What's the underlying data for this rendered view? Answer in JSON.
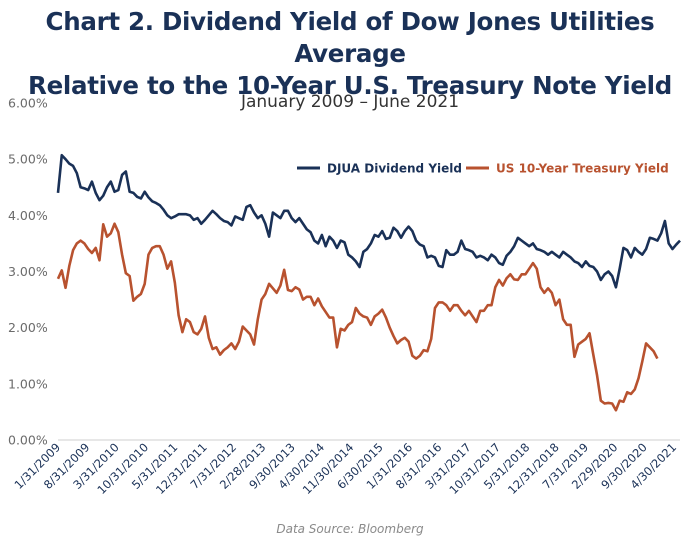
{
  "chart_data": {
    "type": "line",
    "title": "Chart 2. Dividend Yield of Dow Jones Utilities Average Relative to the 10-Year U.S. Treasury Note Yield",
    "title_lines": [
      "Chart 2. Dividend Yield of Dow Jones Utilities Average",
      "Relative to the 10-Year U.S. Treasury Note Yield"
    ],
    "subtitle": "January 2009 – June 2021",
    "source": "Data Source: Bloomberg",
    "ylim": [
      0,
      6
    ],
    "y_ticks": [
      "0.00%",
      "1.00%",
      "2.00%",
      "3.00%",
      "4.00%",
      "5.00%",
      "6.00%"
    ],
    "x_tick_labels": [
      "1/31/2009",
      "8/31/2009",
      "3/31/2010",
      "10/31/2010",
      "5/31/2011",
      "12/31/2011",
      "7/31/2012",
      "2/28/2013",
      "9/30/2013",
      "4/30/2014",
      "11/30/2014",
      "6/30/2015",
      "1/31/2016",
      "8/31/2016",
      "3/31/2017",
      "10/31/2017",
      "5/31/2018",
      "12/31/2018",
      "7/31/2019",
      "2/29/2020",
      "9/30/2020",
      "4/30/2021"
    ],
    "x_start": "2009-01",
    "x_end": "2021-06",
    "grid": false,
    "legend_position": "top-right",
    "colors": {
      "djua": "#1a3157",
      "treasury": "#b8522f"
    },
    "series": [
      {
        "name": "DJUA Dividend Yield",
        "values": [
          4.4,
          5.07,
          5.0,
          4.92,
          4.88,
          4.75,
          4.5,
          4.48,
          4.45,
          4.6,
          4.4,
          4.27,
          4.35,
          4.5,
          4.6,
          4.42,
          4.45,
          4.72,
          4.78,
          4.42,
          4.4,
          4.33,
          4.3,
          4.42,
          4.32,
          4.25,
          4.22,
          4.18,
          4.1,
          4.0,
          3.95,
          3.98,
          4.02,
          4.02,
          4.02,
          4.0,
          3.92,
          3.95,
          3.85,
          3.92,
          4.0,
          4.08,
          4.02,
          3.95,
          3.9,
          3.88,
          3.82,
          3.98,
          3.95,
          3.92,
          4.15,
          4.18,
          4.05,
          3.95,
          4.0,
          3.85,
          3.62,
          4.05,
          4.0,
          3.95,
          4.08,
          4.08,
          3.95,
          3.88,
          3.95,
          3.85,
          3.75,
          3.7,
          3.55,
          3.5,
          3.65,
          3.45,
          3.62,
          3.55,
          3.42,
          3.55,
          3.52,
          3.3,
          3.25,
          3.18,
          3.08,
          3.35,
          3.4,
          3.5,
          3.65,
          3.62,
          3.72,
          3.58,
          3.6,
          3.78,
          3.72,
          3.6,
          3.72,
          3.8,
          3.72,
          3.55,
          3.48,
          3.45,
          3.25,
          3.28,
          3.25,
          3.1,
          3.08,
          3.38,
          3.3,
          3.3,
          3.35,
          3.55,
          3.4,
          3.38,
          3.35,
          3.25,
          3.28,
          3.25,
          3.2,
          3.3,
          3.25,
          3.15,
          3.12,
          3.28,
          3.35,
          3.45,
          3.6,
          3.55,
          3.5,
          3.45,
          3.5,
          3.4,
          3.38,
          3.35,
          3.3,
          3.35,
          3.3,
          3.25,
          3.35,
          3.3,
          3.25,
          3.18,
          3.15,
          3.08,
          3.18,
          3.1,
          3.08,
          3.0,
          2.85,
          2.95,
          3.0,
          2.92,
          2.72,
          3.05,
          3.42,
          3.38,
          3.25,
          3.42,
          3.35,
          3.3,
          3.4,
          3.6,
          3.58,
          3.55,
          3.68,
          3.9,
          3.5,
          3.4,
          3.48,
          3.55
        ]
      },
      {
        "name": "US 10-Year Treasury Yield",
        "values": [
          2.87,
          3.02,
          2.71,
          3.1,
          3.38,
          3.5,
          3.55,
          3.5,
          3.4,
          3.33,
          3.42,
          3.2,
          3.84,
          3.62,
          3.68,
          3.85,
          3.7,
          3.3,
          2.97,
          2.92,
          2.48,
          2.55,
          2.6,
          2.78,
          3.3,
          3.42,
          3.45,
          3.45,
          3.3,
          3.05,
          3.18,
          2.8,
          2.22,
          1.92,
          2.15,
          2.1,
          1.92,
          1.88,
          1.98,
          2.2,
          1.82,
          1.62,
          1.65,
          1.52,
          1.6,
          1.65,
          1.72,
          1.62,
          1.75,
          2.02,
          1.95,
          1.88,
          1.7,
          2.15,
          2.5,
          2.6,
          2.78,
          2.7,
          2.62,
          2.75,
          3.03,
          2.67,
          2.65,
          2.72,
          2.68,
          2.5,
          2.55,
          2.55,
          2.4,
          2.52,
          2.38,
          2.28,
          2.18,
          2.18,
          1.65,
          1.98,
          1.95,
          2.05,
          2.1,
          2.35,
          2.25,
          2.2,
          2.18,
          2.05,
          2.2,
          2.25,
          2.32,
          2.18,
          2.0,
          1.85,
          1.72,
          1.78,
          1.82,
          1.75,
          1.5,
          1.45,
          1.5,
          1.6,
          1.58,
          1.8,
          2.35,
          2.45,
          2.45,
          2.4,
          2.3,
          2.4,
          2.4,
          2.3,
          2.22,
          2.3,
          2.2,
          2.1,
          2.3,
          2.3,
          2.4,
          2.4,
          2.72,
          2.85,
          2.75,
          2.88,
          2.95,
          2.86,
          2.85,
          2.95,
          2.95,
          3.05,
          3.15,
          3.05,
          2.72,
          2.62,
          2.7,
          2.62,
          2.4,
          2.5,
          2.15,
          2.05,
          2.05,
          1.48,
          1.7,
          1.75,
          1.8,
          1.9,
          1.52,
          1.15,
          0.7,
          0.65,
          0.66,
          0.65,
          0.53,
          0.7,
          0.68,
          0.85,
          0.82,
          0.9,
          1.1,
          1.4,
          1.72,
          1.65,
          1.58,
          1.45
        ]
      }
    ]
  }
}
